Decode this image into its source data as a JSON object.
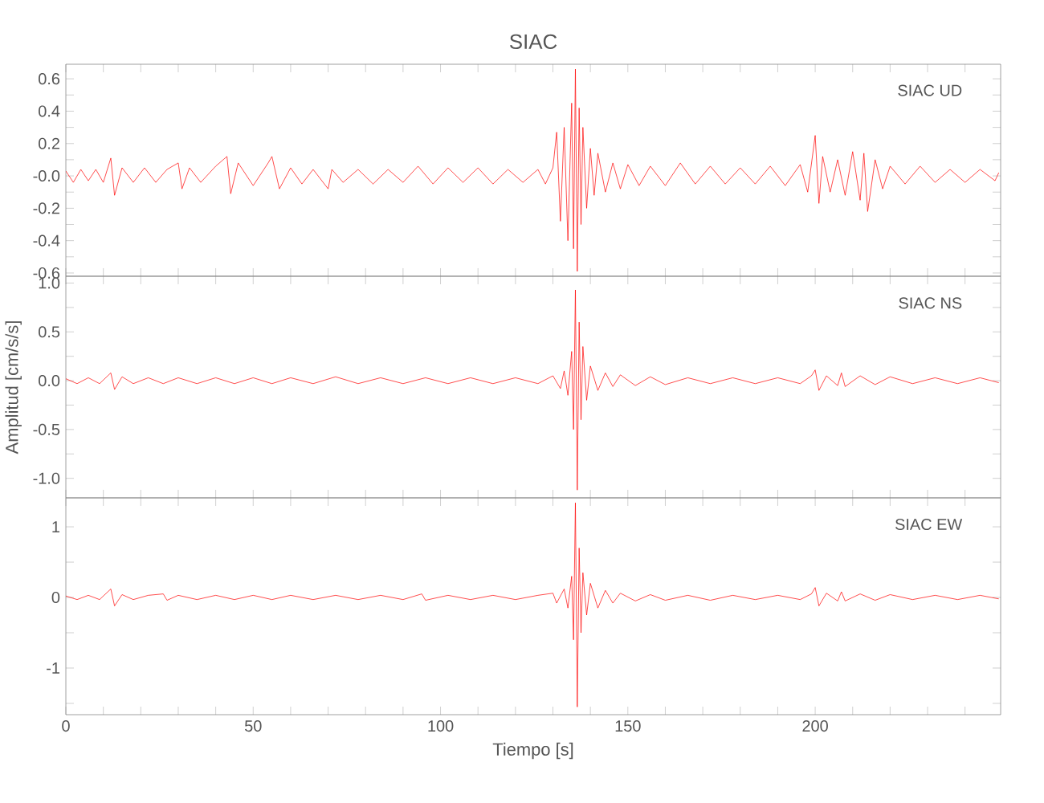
{
  "chart_data": [
    {
      "type": "line",
      "title": "SIAC",
      "annotations": [
        "SIAC   UD"
      ],
      "tick_labels": "y",
      "xlim": [
        0,
        249.5
      ],
      "xticks": [
        0,
        {
          "value": 10,
          "label": null
        },
        {
          "value": 20,
          "label": null
        },
        {
          "value": 30,
          "label": null
        },
        {
          "value": 40,
          "label": null
        },
        50,
        {
          "value": 60,
          "label": null
        },
        {
          "value": 70,
          "label": null
        },
        {
          "value": 80,
          "label": null
        },
        {
          "value": 90,
          "label": null
        },
        100,
        {
          "value": 110,
          "label": null
        },
        {
          "value": 120,
          "label": null
        },
        {
          "value": 130,
          "label": null
        },
        {
          "value": 140,
          "label": null
        },
        150,
        {
          "value": 160,
          "label": null
        },
        {
          "value": 170,
          "label": null
        },
        {
          "value": 180,
          "label": null
        },
        {
          "value": 190,
          "label": null
        },
        200,
        {
          "value": 210,
          "label": null
        },
        {
          "value": 220,
          "label": null
        },
        {
          "value": 230,
          "label": null
        },
        {
          "value": 240,
          "label": null
        }
      ],
      "ylim": [
        -0.62,
        0.69
      ],
      "yticks": [
        -0.6,
        {
          "value": -0.5,
          "label": null
        },
        -0.4,
        {
          "value": -0.3,
          "label": null
        },
        -0.2,
        {
          "value": -0.1,
          "label": null
        },
        {
          "value": 0,
          "label": "-0.0"
        },
        {
          "value": 0.1,
          "label": null
        },
        0.2,
        {
          "value": 0.3,
          "label": null
        },
        0.4,
        {
          "value": 0.5,
          "label": null
        },
        0.6
      ],
      "x": [
        0,
        2,
        4,
        6,
        8,
        10,
        12,
        13,
        15,
        18,
        21,
        24,
        27,
        30,
        31,
        33,
        36,
        40,
        43,
        44,
        46,
        50,
        54,
        55,
        57,
        60,
        63,
        66,
        70,
        71,
        74,
        78,
        82,
        86,
        90,
        94,
        98,
        102,
        106,
        110,
        114,
        118,
        122,
        126,
        128,
        130,
        131,
        132,
        133,
        134,
        135,
        135.5,
        136,
        136.5,
        137,
        137.5,
        138,
        139,
        140,
        141,
        142,
        144,
        146,
        148,
        150,
        153,
        156,
        160,
        164,
        168,
        172,
        176,
        180,
        184,
        188,
        192,
        196,
        198,
        200,
        201,
        202,
        204,
        206,
        208,
        210,
        212,
        213,
        214,
        216,
        218,
        220,
        224,
        228,
        232,
        236,
        240,
        244,
        248,
        249
      ],
      "series": [
        {
          "color": "#ff0000",
          "values": [
            0.03,
            -0.04,
            0.04,
            -0.03,
            0.04,
            -0.04,
            0.11,
            -0.12,
            0.05,
            -0.04,
            0.05,
            -0.04,
            0.04,
            0.08,
            -0.08,
            0.05,
            -0.04,
            0.06,
            0.12,
            -0.11,
            0.08,
            -0.06,
            0.08,
            0.12,
            -0.08,
            0.05,
            -0.05,
            0.04,
            -0.08,
            0.04,
            -0.04,
            0.04,
            -0.05,
            0.04,
            -0.04,
            0.06,
            -0.05,
            0.05,
            -0.04,
            0.05,
            -0.05,
            0.04,
            -0.04,
            0.04,
            -0.05,
            0.05,
            0.27,
            -0.28,
            0.3,
            -0.4,
            0.45,
            -0.45,
            0.66,
            -0.59,
            0.42,
            -0.3,
            0.3,
            -0.2,
            0.17,
            -0.12,
            0.14,
            -0.1,
            0.08,
            -0.08,
            0.07,
            -0.06,
            0.06,
            -0.06,
            0.08,
            -0.05,
            0.06,
            -0.05,
            0.05,
            -0.05,
            0.06,
            -0.06,
            0.07,
            -0.1,
            0.25,
            -0.17,
            0.12,
            -0.1,
            0.1,
            -0.12,
            0.15,
            -0.15,
            0.14,
            -0.22,
            0.1,
            -0.08,
            0.06,
            -0.05,
            0.06,
            -0.04,
            0.04,
            -0.04,
            0.04,
            -0.03,
            0.02
          ]
        }
      ]
    },
    {
      "type": "line",
      "ylabel": "Amplitud [cm/s/s]",
      "annotations": [
        "SIAC   NS"
      ],
      "tick_labels": "y",
      "xlim": [
        0,
        249.5
      ],
      "xticks": [
        0,
        {
          "value": 10,
          "label": null
        },
        {
          "value": 20,
          "label": null
        },
        {
          "value": 30,
          "label": null
        },
        {
          "value": 40,
          "label": null
        },
        50,
        {
          "value": 60,
          "label": null
        },
        {
          "value": 70,
          "label": null
        },
        {
          "value": 80,
          "label": null
        },
        {
          "value": 90,
          "label": null
        },
        100,
        {
          "value": 110,
          "label": null
        },
        {
          "value": 120,
          "label": null
        },
        {
          "value": 130,
          "label": null
        },
        {
          "value": 140,
          "label": null
        },
        150,
        {
          "value": 160,
          "label": null
        },
        {
          "value": 170,
          "label": null
        },
        {
          "value": 180,
          "label": null
        },
        {
          "value": 190,
          "label": null
        },
        200,
        {
          "value": 210,
          "label": null
        },
        {
          "value": 220,
          "label": null
        },
        {
          "value": 230,
          "label": null
        },
        {
          "value": 240,
          "label": null
        }
      ],
      "ylim": [
        -1.2,
        1.07
      ],
      "yticks": [
        {
          "value": -1,
          "label": "-1.0"
        },
        {
          "value": -0.75,
          "label": null
        },
        -0.5,
        {
          "value": -0.25,
          "label": null
        },
        {
          "value": 0,
          "label": "0.0"
        },
        {
          "value": 0.25,
          "label": null
        },
        0.5,
        {
          "value": 0.75,
          "label": null
        },
        {
          "value": 1,
          "label": "1.0"
        }
      ],
      "x": [
        0,
        3,
        6,
        9,
        12,
        13,
        15,
        18,
        22,
        26,
        30,
        35,
        40,
        45,
        50,
        55,
        60,
        66,
        72,
        78,
        84,
        90,
        96,
        102,
        108,
        114,
        120,
        126,
        130,
        132,
        133,
        134,
        135,
        135.5,
        136,
        136.5,
        137,
        137.5,
        138,
        139,
        140,
        142,
        144,
        146,
        148,
        152,
        156,
        160,
        166,
        172,
        178,
        184,
        190,
        196,
        199,
        200,
        201,
        203,
        206,
        207,
        208,
        212,
        216,
        220,
        226,
        232,
        238,
        244,
        249
      ],
      "series": [
        {
          "color": "#ff0000",
          "values": [
            0.02,
            -0.03,
            0.03,
            -0.03,
            0.08,
            -0.09,
            0.04,
            -0.03,
            0.03,
            -0.03,
            0.03,
            -0.03,
            0.03,
            -0.03,
            0.03,
            -0.03,
            0.03,
            -0.03,
            0.04,
            -0.03,
            0.03,
            -0.03,
            0.03,
            -0.03,
            0.03,
            -0.03,
            0.03,
            -0.03,
            0.05,
            -0.08,
            0.1,
            -0.15,
            0.3,
            -0.5,
            0.93,
            -1.12,
            0.6,
            -0.4,
            0.35,
            -0.2,
            0.15,
            -0.1,
            0.08,
            -0.06,
            0.06,
            -0.05,
            0.04,
            -0.04,
            0.03,
            -0.03,
            0.03,
            -0.03,
            0.03,
            -0.03,
            0.05,
            0.11,
            -0.1,
            0.05,
            -0.05,
            0.08,
            -0.06,
            0.05,
            -0.04,
            0.04,
            -0.03,
            0.03,
            -0.03,
            0.03,
            -0.02
          ]
        }
      ]
    },
    {
      "type": "line",
      "xlabel": "Tiempo [s]",
      "annotations": [
        "SIAC   EW"
      ],
      "xlim": [
        0,
        249.5
      ],
      "xticks": [
        0,
        {
          "value": 10,
          "label": null
        },
        {
          "value": 20,
          "label": null
        },
        {
          "value": 30,
          "label": null
        },
        {
          "value": 40,
          "label": null
        },
        50,
        {
          "value": 60,
          "label": null
        },
        {
          "value": 70,
          "label": null
        },
        {
          "value": 80,
          "label": null
        },
        {
          "value": 90,
          "label": null
        },
        100,
        {
          "value": 110,
          "label": null
        },
        {
          "value": 120,
          "label": null
        },
        {
          "value": 130,
          "label": null
        },
        {
          "value": 140,
          "label": null
        },
        150,
        {
          "value": 160,
          "label": null
        },
        {
          "value": 170,
          "label": null
        },
        {
          "value": 180,
          "label": null
        },
        {
          "value": 190,
          "label": null
        },
        200,
        {
          "value": 210,
          "label": null
        },
        {
          "value": 220,
          "label": null
        },
        {
          "value": 230,
          "label": null
        },
        {
          "value": 240,
          "label": null
        }
      ],
      "ylim": [
        -1.66,
        1.41
      ],
      "yticks": [
        {
          "value": -1.5,
          "label": null
        },
        -1,
        {
          "value": -0.5,
          "label": null
        },
        0,
        {
          "value": 0.5,
          "label": null
        },
        1
      ],
      "x": [
        0,
        3,
        6,
        9,
        12,
        13,
        15,
        18,
        22,
        26,
        27,
        30,
        35,
        40,
        45,
        50,
        55,
        60,
        66,
        72,
        78,
        84,
        90,
        95,
        96,
        102,
        108,
        114,
        120,
        126,
        130,
        131,
        133,
        134,
        135,
        135.5,
        136,
        136.5,
        137,
        137.5,
        138,
        139,
        140,
        142,
        144,
        146,
        148,
        152,
        156,
        160,
        166,
        172,
        178,
        184,
        190,
        196,
        199,
        200,
        201,
        203,
        206,
        207,
        208,
        212,
        216,
        220,
        226,
        232,
        238,
        244,
        249
      ],
      "series": [
        {
          "color": "#ff0000",
          "values": [
            0.02,
            -0.03,
            0.03,
            -0.03,
            0.12,
            -0.12,
            0.04,
            -0.03,
            0.03,
            0.05,
            -0.04,
            0.03,
            -0.03,
            0.03,
            -0.03,
            0.03,
            -0.03,
            0.03,
            -0.03,
            0.03,
            -0.03,
            0.03,
            -0.03,
            0.05,
            -0.04,
            0.03,
            -0.03,
            0.03,
            -0.03,
            0.03,
            0.06,
            -0.08,
            0.12,
            -0.15,
            0.3,
            -0.6,
            1.34,
            -1.55,
            0.7,
            -0.5,
            0.35,
            -0.25,
            0.2,
            -0.15,
            0.1,
            -0.08,
            0.06,
            -0.05,
            0.04,
            -0.04,
            0.03,
            -0.04,
            0.03,
            -0.03,
            0.03,
            -0.03,
            0.05,
            0.14,
            -0.12,
            0.06,
            -0.05,
            0.08,
            -0.05,
            0.05,
            -0.04,
            0.04,
            -0.03,
            0.03,
            -0.03,
            0.03,
            -0.02
          ]
        }
      ]
    }
  ]
}
